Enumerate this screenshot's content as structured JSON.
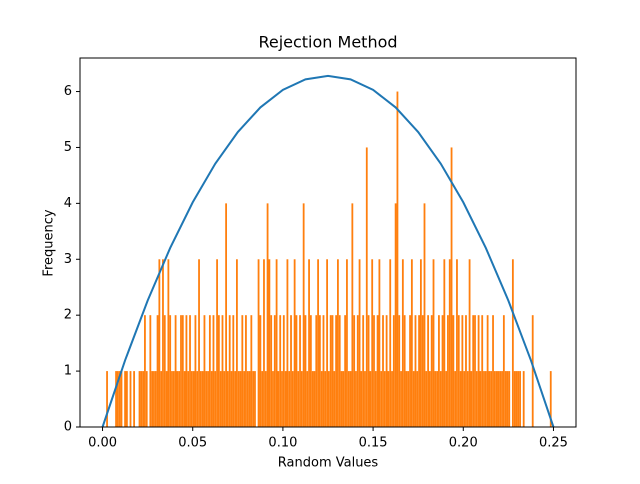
{
  "chart_data": {
    "type": "histogram",
    "title": "Rejection Method",
    "x_label": "Random Values",
    "y_label": "Frequency",
    "color": "#ff7f0e",
    "xlim": [
      -0.0125,
      0.2625
    ],
    "ylim": [
      0,
      6.6
    ],
    "xticks": [
      {
        "value": 0,
        "label": "0.00"
      },
      {
        "value": 0.05,
        "label": "0.05"
      },
      {
        "value": 0.1,
        "label": "0.10"
      },
      {
        "value": 0.15,
        "label": "0.15"
      },
      {
        "value": 0.2,
        "label": "0.20"
      },
      {
        "value": 0.25,
        "label": "0.25"
      }
    ],
    "yticks": [
      0,
      1,
      2,
      3,
      4,
      5,
      6
    ],
    "bins": [
      0,
      0.001,
      0.002,
      0.003,
      0.004,
      0.005,
      0.006,
      0.007,
      0.008,
      0.009,
      0.01,
      0.011,
      0.012,
      0.013,
      0.014,
      0.015,
      0.016,
      0.017,
      0.018,
      0.019,
      0.02,
      0.021,
      0.022,
      0.023,
      0.024,
      0.025,
      0.026,
      0.027,
      0.028,
      0.029,
      0.03,
      0.031,
      0.032,
      0.033,
      0.034,
      0.035,
      0.036,
      0.037,
      0.038,
      0.039,
      0.04,
      0.041,
      0.042,
      0.043,
      0.044,
      0.045,
      0.046,
      0.047,
      0.048,
      0.049,
      0.05,
      0.051,
      0.052,
      0.053,
      0.054,
      0.055,
      0.056,
      0.057,
      0.058,
      0.059,
      0.06,
      0.061,
      0.062,
      0.063,
      0.064,
      0.065,
      0.066,
      0.067,
      0.068,
      0.069,
      0.07,
      0.071,
      0.072,
      0.073,
      0.074,
      0.075,
      0.076,
      0.077,
      0.078,
      0.079,
      0.08,
      0.081,
      0.082,
      0.083,
      0.084,
      0.085,
      0.086,
      0.087,
      0.088,
      0.089,
      0.09,
      0.091,
      0.092,
      0.093,
      0.094,
      0.095,
      0.096,
      0.097,
      0.098,
      0.099,
      0.1,
      0.101,
      0.102,
      0.103,
      0.104,
      0.105,
      0.106,
      0.107,
      0.108,
      0.109,
      0.11,
      0.111,
      0.112,
      0.113,
      0.114,
      0.115,
      0.116,
      0.117,
      0.118,
      0.119,
      0.12,
      0.121,
      0.122,
      0.123,
      0.124,
      0.125,
      0.126,
      0.127,
      0.128,
      0.129,
      0.13,
      0.131,
      0.132,
      0.133,
      0.134,
      0.135,
      0.136,
      0.137,
      0.138,
      0.139,
      0.14,
      0.141,
      0.142,
      0.143,
      0.144,
      0.145,
      0.146,
      0.147,
      0.148,
      0.149,
      0.15,
      0.151,
      0.152,
      0.153,
      0.154,
      0.155,
      0.156,
      0.157,
      0.158,
      0.159,
      0.16,
      0.161,
      0.162,
      0.163,
      0.164,
      0.165,
      0.166,
      0.167,
      0.168,
      0.169,
      0.17,
      0.171,
      0.172,
      0.173,
      0.174,
      0.175,
      0.176,
      0.177,
      0.178,
      0.179,
      0.18,
      0.181,
      0.182,
      0.183,
      0.184,
      0.185,
      0.186,
      0.187,
      0.188,
      0.189,
      0.19,
      0.191,
      0.192,
      0.193,
      0.194,
      0.195,
      0.196,
      0.197,
      0.198,
      0.199,
      0.2,
      0.201,
      0.202,
      0.203,
      0.204,
      0.205,
      0.206,
      0.207,
      0.208,
      0.209,
      0.21,
      0.211,
      0.212,
      0.213,
      0.214,
      0.215,
      0.216,
      0.217,
      0.218,
      0.219,
      0.22,
      0.221,
      0.222,
      0.223,
      0.224,
      0.225,
      0.226,
      0.227,
      0.228,
      0.229,
      0.23,
      0.231,
      0.232,
      0.233,
      0.234,
      0.235,
      0.236,
      0.237,
      0.238,
      0.239,
      0.24,
      0.241,
      0.242,
      0.243,
      0.244,
      0.245,
      0.246,
      0.247,
      0.248,
      0.249,
      0.25
    ],
    "values": [
      0,
      0,
      1,
      0,
      0,
      0,
      0,
      1,
      1,
      1,
      1,
      0,
      1,
      1,
      0,
      1,
      0,
      1,
      0,
      0,
      1,
      1,
      1,
      2,
      1,
      0,
      2,
      1,
      1,
      1,
      2,
      3,
      1,
      3,
      2,
      1,
      3,
      2,
      1,
      1,
      2,
      1,
      1,
      2,
      2,
      1,
      2,
      1,
      2,
      1,
      1,
      2,
      1,
      3,
      1,
      1,
      2,
      1,
      1,
      2,
      1,
      2,
      1,
      3,
      2,
      1,
      2,
      1,
      4,
      1,
      2,
      1,
      2,
      1,
      3,
      1,
      1,
      2,
      1,
      2,
      1,
      1,
      2,
      1,
      1,
      0,
      3,
      2,
      1,
      3,
      1,
      4,
      3,
      2,
      1,
      2,
      3,
      1,
      2,
      1,
      2,
      1,
      3,
      1,
      2,
      1,
      3,
      2,
      1,
      2,
      1,
      4,
      2,
      1,
      3,
      2,
      1,
      1,
      2,
      3,
      2,
      1,
      2,
      1,
      3,
      1,
      2,
      2,
      1,
      2,
      3,
      2,
      1,
      1,
      2,
      3,
      1,
      1,
      4,
      2,
      1,
      2,
      3,
      1,
      2,
      1,
      5,
      2,
      1,
      3,
      2,
      1,
      2,
      3,
      1,
      2,
      1,
      2,
      1,
      3,
      1,
      2,
      4,
      6,
      2,
      1,
      3,
      2,
      1,
      1,
      2,
      3,
      1,
      2,
      1,
      2,
      3,
      2,
      4,
      1,
      2,
      1,
      2,
      3,
      1,
      1,
      2,
      1,
      2,
      3,
      1,
      2,
      3,
      5,
      2,
      1,
      3,
      2,
      1,
      2,
      1,
      2,
      1,
      3,
      1,
      2,
      2,
      1,
      2,
      1,
      2,
      1,
      1,
      2,
      1,
      1,
      2,
      1,
      1,
      1,
      1,
      1,
      2,
      1,
      1,
      1,
      0,
      3,
      1,
      1,
      1,
      1,
      0,
      1,
      0,
      0,
      0,
      0,
      2,
      0,
      0,
      0,
      0,
      0,
      0,
      0,
      0,
      0,
      1,
      0
    ],
    "curve": {
      "type": "line",
      "color": "#1f77b4",
      "x": [
        0,
        0.0125,
        0.025,
        0.0375,
        0.05,
        0.0625,
        0.075,
        0.0875,
        0.1,
        0.1125,
        0.125,
        0.1375,
        0.15,
        0.1625,
        0.175,
        0.1875,
        0.2,
        0.2125,
        0.225,
        0.2375,
        0.25
      ],
      "values": [
        0,
        1.193,
        2.261,
        3.203,
        4.02,
        4.711,
        5.276,
        5.716,
        6.03,
        6.218,
        6.281,
        6.218,
        6.03,
        5.716,
        5.276,
        4.711,
        4.02,
        3.203,
        2.261,
        1.193,
        0
      ]
    }
  }
}
